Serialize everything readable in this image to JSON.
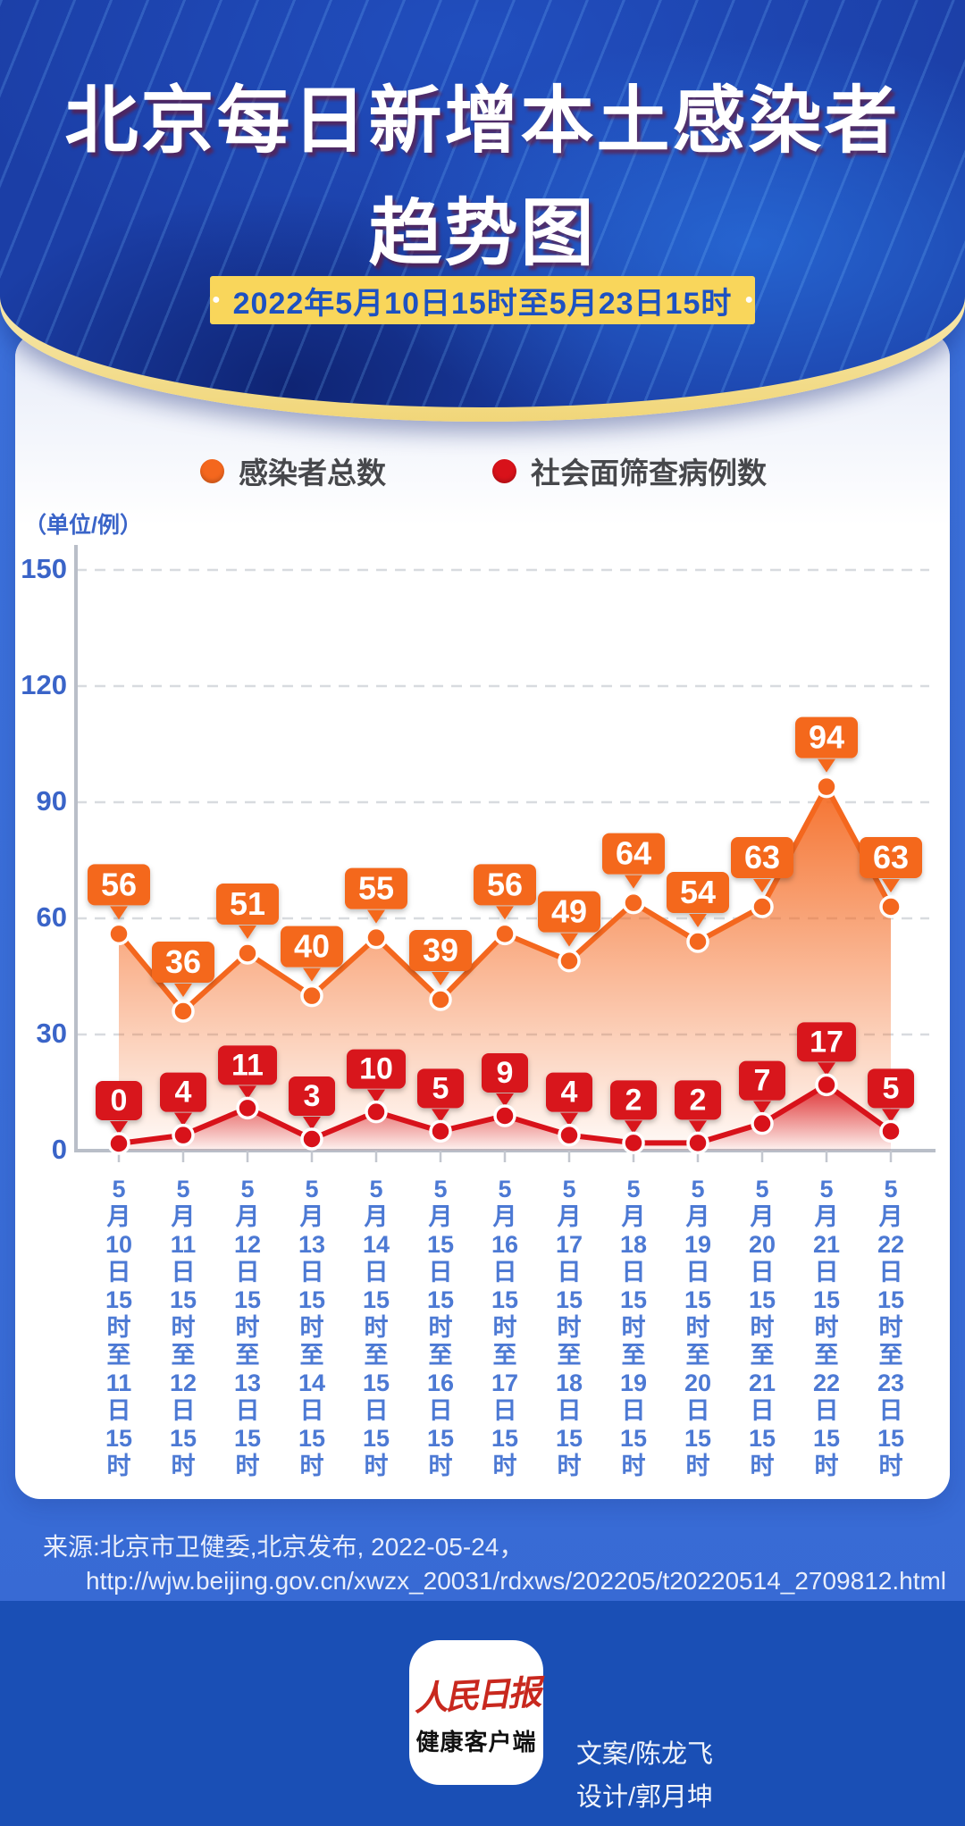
{
  "header": {
    "title_line1": "北京每日新增本土感染者",
    "title_line2": "趋势图",
    "period": "2022年5月10日15时至5月23日15时",
    "bullet": "●"
  },
  "legend": [
    {
      "label": "感染者总数",
      "color": "#F4671E"
    },
    {
      "label": "社会面筛查病例数",
      "color": "#D8121A"
    }
  ],
  "chart_data": {
    "type": "line",
    "unit_label": "（单位/例）",
    "ylim": [
      0,
      150
    ],
    "yticks": [
      0,
      30,
      60,
      90,
      120,
      150
    ],
    "grid": true,
    "legend_position": "top",
    "categories": [
      "5月10日15时至11日15时",
      "5月11日15时至12日15时",
      "5月12日15时至13日15时",
      "5月13日15时至14日15时",
      "5月14日15时至15日15时",
      "5月15日15时至16日15时",
      "5月16日15时至17日15时",
      "5月17日15时至18日15时",
      "5月18日15时至19日15时",
      "5月19日15时至20日15时",
      "5月20日15时至21日15时",
      "5月21日15时至22日15时",
      "5月22日15时至23日15时"
    ],
    "series": [
      {
        "name": "感染者总数",
        "color": "#F4671E",
        "values": [
          56,
          36,
          51,
          40,
          55,
          39,
          56,
          49,
          64,
          54,
          63,
          94,
          63
        ]
      },
      {
        "name": "社会面筛查病例数",
        "color": "#D8121A",
        "values": [
          0,
          4,
          11,
          3,
          10,
          5,
          9,
          4,
          2,
          2,
          7,
          17,
          5
        ]
      }
    ]
  },
  "source": {
    "line1": "来源:北京市卫健委,北京发布, 2022-05-24，",
    "line2": "http://wjw.beijing.gov.cn/xwzx_20031/rdxws/202205/t20220514_2709812.html"
  },
  "footer": {
    "logo_line1": "人民日报",
    "logo_line2": "健康客户端",
    "credit1": "文案/陈龙飞",
    "credit2": "设计/郭月坤"
  }
}
